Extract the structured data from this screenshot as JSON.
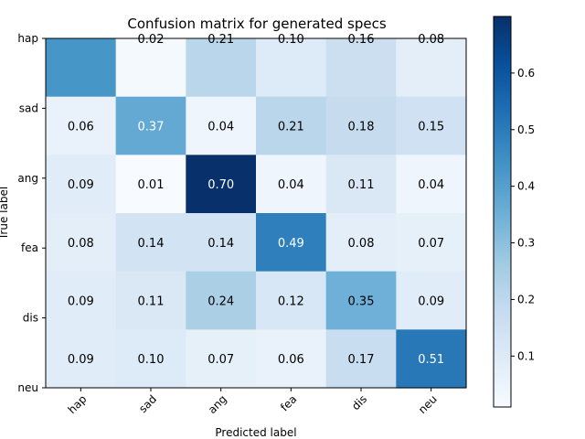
{
  "chart_data": {
    "type": "heatmap",
    "title": "Confusion matrix for generated specs",
    "xlabel": "Predicted label",
    "ylabel": "True label",
    "x_categories": [
      "hap",
      "sad",
      "ang",
      "fea",
      "dis",
      "neu"
    ],
    "y_categories": [
      "hap",
      "sad",
      "ang",
      "fea",
      "dis",
      "neu"
    ],
    "values": [
      [
        0.43,
        0.02,
        0.21,
        0.1,
        0.16,
        0.08
      ],
      [
        0.06,
        0.37,
        0.04,
        0.21,
        0.18,
        0.15
      ],
      [
        0.09,
        0.01,
        0.7,
        0.04,
        0.11,
        0.04
      ],
      [
        0.08,
        0.14,
        0.14,
        0.49,
        0.08,
        0.07
      ],
      [
        0.09,
        0.11,
        0.24,
        0.12,
        0.35,
        0.09
      ],
      [
        0.09,
        0.1,
        0.07,
        0.06,
        0.17,
        0.51
      ]
    ],
    "cell_labels": [
      [
        "",
        "0.02",
        "0.21",
        "0.10",
        "0.16",
        "0.08"
      ],
      [
        "0.06",
        "0.37",
        "0.04",
        "0.21",
        "0.18",
        "0.15"
      ],
      [
        "0.09",
        "0.01",
        "0.70",
        "0.04",
        "0.11",
        "0.04"
      ],
      [
        "0.08",
        "0.14",
        "0.14",
        "0.49",
        "0.08",
        "0.07"
      ],
      [
        "0.09",
        "0.11",
        "0.24",
        "0.12",
        "0.35",
        "0.09"
      ],
      [
        "0.09",
        "0.10",
        "0.07",
        "0.06",
        "0.17",
        "0.51"
      ]
    ],
    "colormap": "Blues",
    "colorbar": {
      "range": [
        0.01,
        0.7
      ],
      "ticks": [
        0.1,
        0.2,
        0.3,
        0.4,
        0.5,
        0.6
      ],
      "tick_labels": [
        "0.1",
        "0.2",
        "0.3",
        "0.4",
        "0.5",
        "0.6"
      ]
    },
    "grid": false
  }
}
